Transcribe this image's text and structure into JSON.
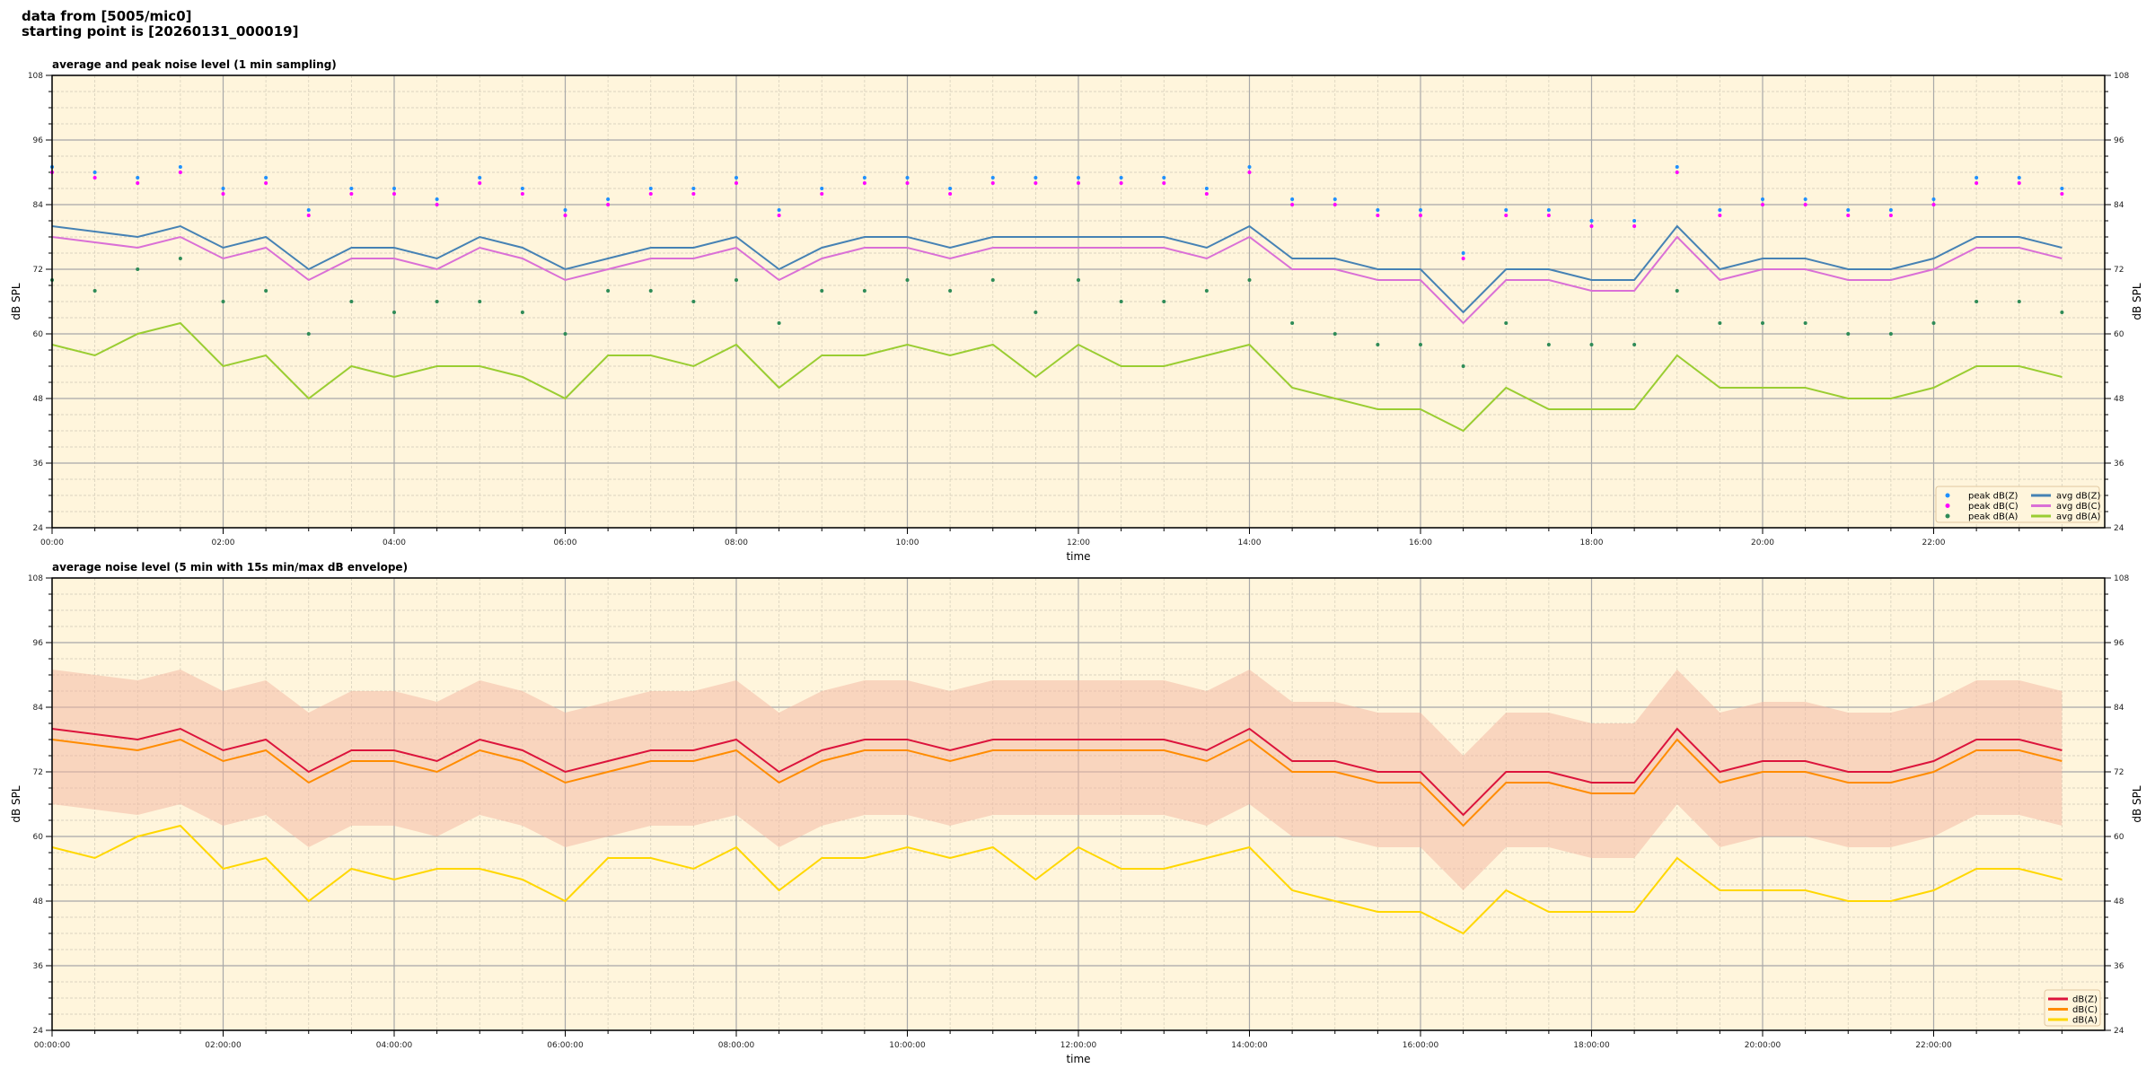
{
  "header": {
    "line1": "data from [5005/mic0]",
    "line2": "starting point is [20260131_000019]"
  },
  "colors": {
    "background": "#fff5dc",
    "peakZ": "#1e90ff",
    "peakC": "#ff00ff",
    "peakA": "#2e8b57",
    "avgZ": "#4682b4",
    "avgC": "#da70d6",
    "avgA": "#9acd32",
    "dBZ": "#dc143c",
    "dBC": "#ff8c00",
    "dBA": "#ffd700",
    "envelope": "#f4b6a0"
  },
  "chart_data": [
    {
      "type": "line",
      "title": "average and peak noise level (1 min sampling)",
      "xlabel": "time",
      "ylabel": "dB SPL",
      "ylim": [
        24,
        108
      ],
      "yticks": [
        24,
        36,
        48,
        60,
        72,
        84,
        96,
        108
      ],
      "xlim_hours": [
        0,
        24
      ],
      "xticks": [
        "00:00",
        "02:00",
        "04:00",
        "06:00",
        "08:00",
        "10:00",
        "12:00",
        "14:00",
        "16:00",
        "18:00",
        "20:00",
        "22:00"
      ],
      "grid": true,
      "legend": "bottom-right",
      "x_step_minutes": 30,
      "series": [
        {
          "name": "peak dB(Z)",
          "kind": "scatter",
          "color": "#1e90ff",
          "values": [
            91,
            90,
            89,
            91,
            87,
            89,
            83,
            87,
            87,
            85,
            89,
            87,
            83,
            85,
            87,
            87,
            89,
            83,
            87,
            89,
            89,
            87,
            89,
            89,
            89,
            89,
            89,
            87,
            91,
            85,
            85,
            83,
            83,
            75,
            83,
            83,
            81,
            81,
            91,
            83,
            85,
            85,
            83,
            83,
            85,
            89,
            89,
            87
          ]
        },
        {
          "name": "peak dB(C)",
          "kind": "scatter",
          "color": "#ff00ff",
          "values": [
            90,
            89,
            88,
            90,
            86,
            88,
            82,
            86,
            86,
            84,
            88,
            86,
            82,
            84,
            86,
            86,
            88,
            82,
            86,
            88,
            88,
            86,
            88,
            88,
            88,
            88,
            88,
            86,
            90,
            84,
            84,
            82,
            82,
            74,
            82,
            82,
            80,
            80,
            90,
            82,
            84,
            84,
            82,
            82,
            84,
            88,
            88,
            86
          ]
        },
        {
          "name": "peak dB(A)",
          "kind": "scatter",
          "color": "#2e8b57",
          "values": [
            70,
            68,
            72,
            74,
            66,
            68,
            60,
            66,
            64,
            66,
            66,
            64,
            60,
            68,
            68,
            66,
            70,
            62,
            68,
            68,
            70,
            68,
            70,
            64,
            70,
            66,
            66,
            68,
            70,
            62,
            60,
            58,
            58,
            54,
            62,
            58,
            58,
            58,
            68,
            62,
            62,
            62,
            60,
            60,
            62,
            66,
            66,
            64
          ]
        },
        {
          "name": "avg dB(Z)",
          "kind": "line",
          "color": "#4682b4",
          "values": [
            80,
            79,
            78,
            80,
            76,
            78,
            72,
            76,
            76,
            74,
            78,
            76,
            72,
            74,
            76,
            76,
            78,
            72,
            76,
            78,
            78,
            76,
            78,
            78,
            78,
            78,
            78,
            76,
            80,
            74,
            74,
            72,
            72,
            64,
            72,
            72,
            70,
            70,
            80,
            72,
            74,
            74,
            72,
            72,
            74,
            78,
            78,
            76
          ]
        },
        {
          "name": "avg dB(C)",
          "kind": "line",
          "color": "#da70d6",
          "values": [
            78,
            77,
            76,
            78,
            74,
            76,
            70,
            74,
            74,
            72,
            76,
            74,
            70,
            72,
            74,
            74,
            76,
            70,
            74,
            76,
            76,
            74,
            76,
            76,
            76,
            76,
            76,
            74,
            78,
            72,
            72,
            70,
            70,
            62,
            70,
            70,
            68,
            68,
            78,
            70,
            72,
            72,
            70,
            70,
            72,
            76,
            76,
            74
          ]
        },
        {
          "name": "avg dB(A)",
          "kind": "line",
          "color": "#9acd32",
          "values": [
            58,
            56,
            60,
            62,
            54,
            56,
            48,
            54,
            52,
            54,
            54,
            52,
            48,
            56,
            56,
            54,
            58,
            50,
            56,
            56,
            58,
            56,
            58,
            52,
            58,
            54,
            54,
            56,
            58,
            50,
            48,
            46,
            46,
            42,
            50,
            46,
            46,
            46,
            56,
            50,
            50,
            50,
            48,
            48,
            50,
            54,
            54,
            52
          ]
        }
      ]
    },
    {
      "type": "line",
      "title": "average noise level (5 min with 15s min/max dB envelope)",
      "xlabel": "time",
      "ylabel": "dB SPL",
      "ylim": [
        24,
        108
      ],
      "yticks": [
        24,
        36,
        48,
        60,
        72,
        84,
        96,
        108
      ],
      "xlim_hours": [
        0,
        24
      ],
      "xticks": [
        "00:00:00",
        "02:00:00",
        "04:00:00",
        "06:00:00",
        "08:00:00",
        "10:00:00",
        "12:00:00",
        "14:00:00",
        "16:00:00",
        "18:00:00",
        "20:00:00",
        "22:00:00"
      ],
      "grid": true,
      "legend": "bottom-right",
      "x_step_minutes": 30,
      "envelope": {
        "color": "#f4b6a0",
        "min": [
          66,
          65,
          64,
          66,
          62,
          64,
          58,
          62,
          62,
          60,
          64,
          62,
          58,
          60,
          62,
          62,
          64,
          58,
          62,
          64,
          64,
          62,
          64,
          64,
          64,
          64,
          64,
          62,
          66,
          60,
          60,
          58,
          58,
          50,
          58,
          58,
          56,
          56,
          66,
          58,
          60,
          60,
          58,
          58,
          60,
          64,
          64,
          62
        ],
        "max": [
          91,
          90,
          89,
          91,
          87,
          89,
          83,
          87,
          87,
          85,
          89,
          87,
          83,
          85,
          87,
          87,
          89,
          83,
          87,
          89,
          89,
          87,
          89,
          89,
          89,
          89,
          89,
          87,
          91,
          85,
          85,
          83,
          83,
          75,
          83,
          83,
          81,
          81,
          91,
          83,
          85,
          85,
          83,
          83,
          85,
          89,
          89,
          87
        ]
      },
      "series": [
        {
          "name": "dB(Z)",
          "kind": "line",
          "color": "#dc143c",
          "values": [
            80,
            79,
            78,
            80,
            76,
            78,
            72,
            76,
            76,
            74,
            78,
            76,
            72,
            74,
            76,
            76,
            78,
            72,
            76,
            78,
            78,
            76,
            78,
            78,
            78,
            78,
            78,
            76,
            80,
            74,
            74,
            72,
            72,
            64,
            72,
            72,
            70,
            70,
            80,
            72,
            74,
            74,
            72,
            72,
            74,
            78,
            78,
            76
          ]
        },
        {
          "name": "dB(C)",
          "kind": "line",
          "color": "#ff8c00",
          "values": [
            78,
            77,
            76,
            78,
            74,
            76,
            70,
            74,
            74,
            72,
            76,
            74,
            70,
            72,
            74,
            74,
            76,
            70,
            74,
            76,
            76,
            74,
            76,
            76,
            76,
            76,
            76,
            74,
            78,
            72,
            72,
            70,
            70,
            62,
            70,
            70,
            68,
            68,
            78,
            70,
            72,
            72,
            70,
            70,
            72,
            76,
            76,
            74
          ]
        },
        {
          "name": "dB(A)",
          "kind": "line",
          "color": "#ffd700",
          "values": [
            58,
            56,
            60,
            62,
            54,
            56,
            48,
            54,
            52,
            54,
            54,
            52,
            48,
            56,
            56,
            54,
            58,
            50,
            56,
            56,
            58,
            56,
            58,
            52,
            58,
            54,
            54,
            56,
            58,
            50,
            48,
            46,
            46,
            42,
            50,
            46,
            46,
            46,
            56,
            50,
            50,
            50,
            48,
            48,
            50,
            54,
            54,
            52
          ]
        }
      ]
    }
  ]
}
